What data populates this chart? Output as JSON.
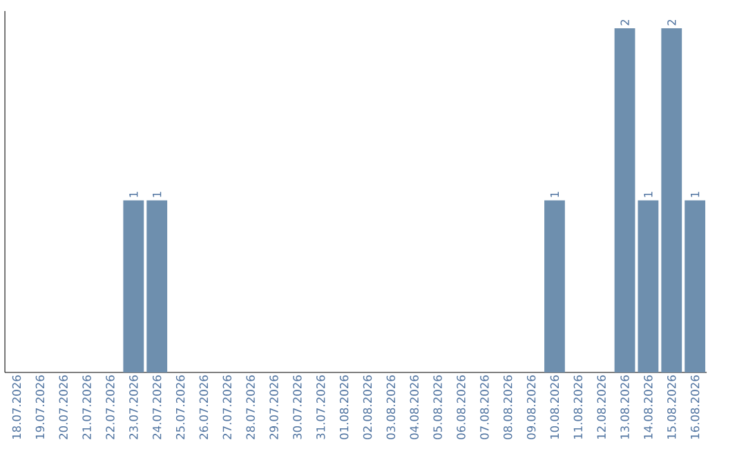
{
  "chart_data": {
    "type": "bar",
    "categories": [
      "18.07.2026",
      "19.07.2026",
      "20.07.2026",
      "21.07.2026",
      "22.07.2026",
      "23.07.2026",
      "24.07.2026",
      "25.07.2026",
      "26.07.2026",
      "27.07.2026",
      "28.07.2026",
      "29.07.2026",
      "30.07.2026",
      "31.07.2026",
      "01.08.2026",
      "02.08.2026",
      "03.08.2026",
      "04.08.2026",
      "05.08.2026",
      "06.08.2026",
      "07.08.2026",
      "08.08.2026",
      "09.08.2026",
      "10.08.2026",
      "11.08.2026",
      "12.08.2026",
      "13.08.2026",
      "14.08.2026",
      "15.08.2026",
      "16.08.2026"
    ],
    "values": [
      0,
      0,
      0,
      0,
      0,
      1,
      1,
      0,
      0,
      0,
      0,
      0,
      0,
      0,
      0,
      0,
      0,
      0,
      0,
      0,
      0,
      0,
      0,
      1,
      0,
      0,
      2,
      1,
      2,
      1
    ],
    "value_labels": [
      null,
      null,
      null,
      null,
      null,
      "1",
      "1",
      null,
      null,
      null,
      null,
      null,
      null,
      null,
      null,
      null,
      null,
      null,
      null,
      null,
      null,
      null,
      null,
      "1",
      null,
      null,
      "2",
      "1",
      "2",
      "1"
    ],
    "color": "#6e8fae"
  }
}
